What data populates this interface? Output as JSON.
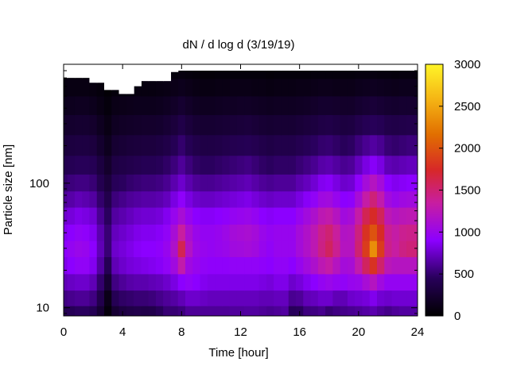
{
  "chart_data": {
    "type": "heatmap",
    "title": "dN / d log d (3/19/19)",
    "xlabel": "Time [hour]",
    "ylabel": "Particle size [nm]",
    "x_range": [
      0,
      24
    ],
    "x_ticks": [
      0,
      4,
      8,
      12,
      16,
      20,
      24
    ],
    "y_scale": "log",
    "y_range": [
      8.6,
      900
    ],
    "y_ticks": [
      10,
      100
    ],
    "colorbar": {
      "range": [
        0,
        3000
      ],
      "ticks": [
        0,
        500,
        1000,
        1500,
        2000,
        2500,
        3000
      ],
      "colormap": "black-purple-red-yellow"
    },
    "grid": false,
    "hours": [
      0,
      0.5,
      1,
      1.5,
      2,
      2.5,
      3,
      3.5,
      4,
      4.5,
      5,
      5.5,
      6,
      6.5,
      7,
      7.5,
      8,
      8.5,
      9,
      9.5,
      10,
      10.5,
      11,
      11.5,
      12,
      12.5,
      13,
      13.5,
      14,
      14.5,
      15,
      15.5,
      16,
      16.5,
      17,
      17.5,
      18,
      18.5,
      19,
      19.5,
      20,
      20.5,
      21,
      21.5,
      22,
      22.5,
      23,
      23.5,
      24
    ],
    "sizes_nm": [
      9,
      12,
      16,
      22,
      30,
      40,
      55,
      75,
      100,
      140,
      200,
      300,
      420,
      600,
      800
    ],
    "upper_size_limit_nm": [
      700,
      700,
      700,
      700,
      640,
      640,
      560,
      560,
      520,
      520,
      600,
      660,
      660,
      660,
      660,
      780,
      800,
      800,
      800,
      800,
      800,
      800,
      800,
      800,
      800,
      800,
      800,
      800,
      800,
      800,
      800,
      800,
      800,
      800,
      800,
      800,
      800,
      800,
      800,
      800,
      800,
      800,
      800,
      800,
      800,
      800,
      800,
      800,
      800
    ],
    "z_rows": [
      [
        400,
        430,
        460,
        460,
        420,
        260,
        60,
        260,
        330,
        360,
        380,
        370,
        380,
        450,
        520,
        520,
        550,
        620,
        620,
        620,
        620,
        620,
        620,
        630,
        630,
        640,
        640,
        620,
        600,
        620,
        640,
        450,
        460,
        550,
        560,
        590,
        520,
        560,
        580,
        600,
        620,
        650,
        680,
        620,
        580,
        620,
        640,
        640,
        640
      ],
      [
        560,
        590,
        610,
        610,
        560,
        380,
        120,
        420,
        480,
        500,
        520,
        520,
        540,
        580,
        620,
        650,
        700,
        760,
        760,
        740,
        720,
        720,
        720,
        720,
        720,
        720,
        720,
        700,
        700,
        720,
        720,
        600,
        620,
        700,
        720,
        760,
        760,
        700,
        700,
        760,
        780,
        800,
        850,
        780,
        760,
        780,
        780,
        780,
        780
      ],
      [
        700,
        740,
        760,
        760,
        700,
        500,
        260,
        560,
        620,
        660,
        680,
        680,
        700,
        720,
        760,
        820,
        900,
        940,
        900,
        860,
        840,
        840,
        840,
        840,
        840,
        840,
        840,
        820,
        800,
        840,
        840,
        760,
        800,
        860,
        900,
        960,
        1000,
        960,
        940,
        980,
        1000,
        1100,
        1200,
        1050,
        960,
        960,
        960,
        960,
        960
      ],
      [
        840,
        900,
        940,
        940,
        860,
        640,
        420,
        700,
        760,
        800,
        820,
        840,
        860,
        880,
        940,
        1050,
        1300,
        1040,
        980,
        940,
        920,
        920,
        920,
        940,
        940,
        940,
        940,
        920,
        900,
        940,
        940,
        900,
        980,
        1060,
        1140,
        1260,
        1320,
        1200,
        1080,
        1100,
        1300,
        1560,
        1800,
        1520,
        1240,
        1200,
        1200,
        1200,
        1200
      ],
      [
        900,
        960,
        1000,
        980,
        900,
        700,
        520,
        760,
        800,
        840,
        880,
        900,
        900,
        920,
        980,
        1150,
        1600,
        1180,
        1020,
        980,
        960,
        980,
        1000,
        1050,
        1060,
        1080,
        1050,
        980,
        940,
        980,
        980,
        980,
        1080,
        1160,
        1260,
        1440,
        1560,
        1400,
        1200,
        1200,
        1500,
        1860,
        2350,
        1860,
        1420,
        1340,
        1440,
        1480,
        1480
      ],
      [
        860,
        900,
        940,
        920,
        860,
        680,
        520,
        720,
        760,
        800,
        840,
        860,
        860,
        880,
        940,
        1100,
        1350,
        1120,
        1000,
        960,
        960,
        980,
        1020,
        1080,
        1100,
        1120,
        1080,
        1000,
        960,
        980,
        980,
        980,
        1080,
        1160,
        1260,
        1420,
        1500,
        1360,
        1180,
        1200,
        1460,
        1800,
        2000,
        1760,
        1400,
        1320,
        1400,
        1420,
        1420
      ],
      [
        760,
        800,
        840,
        820,
        780,
        600,
        460,
        640,
        680,
        720,
        760,
        780,
        780,
        800,
        860,
        980,
        1100,
        980,
        900,
        880,
        880,
        900,
        920,
        960,
        980,
        1000,
        960,
        900,
        880,
        900,
        900,
        900,
        980,
        1060,
        1140,
        1260,
        1300,
        1200,
        1060,
        1100,
        1320,
        1600,
        1750,
        1580,
        1260,
        1200,
        1240,
        1260,
        1260
      ],
      [
        620,
        660,
        700,
        680,
        640,
        500,
        380,
        540,
        580,
        620,
        640,
        660,
        660,
        680,
        720,
        820,
        920,
        820,
        760,
        740,
        740,
        760,
        780,
        800,
        820,
        840,
        800,
        760,
        740,
        760,
        760,
        760,
        820,
        880,
        940,
        1040,
        1060,
        980,
        900,
        920,
        1100,
        1320,
        1480,
        1300,
        1060,
        1000,
        1040,
        1060,
        1060
      ],
      [
        500,
        540,
        560,
        560,
        520,
        400,
        300,
        440,
        460,
        500,
        520,
        540,
        540,
        560,
        600,
        680,
        760,
        680,
        620,
        600,
        600,
        620,
        640,
        660,
        680,
        700,
        660,
        620,
        600,
        620,
        620,
        620,
        680,
        720,
        780,
        860,
        880,
        820,
        760,
        780,
        920,
        1080,
        1200,
        1080,
        900,
        860,
        880,
        900,
        900
      ],
      [
        400,
        420,
        440,
        440,
        420,
        320,
        220,
        340,
        360,
        380,
        400,
        420,
        420,
        440,
        480,
        540,
        620,
        540,
        480,
        460,
        460,
        480,
        500,
        520,
        540,
        560,
        520,
        480,
        460,
        480,
        480,
        480,
        520,
        560,
        600,
        660,
        680,
        640,
        600,
        620,
        720,
        820,
        880,
        820,
        700,
        680,
        700,
        720,
        720
      ],
      [
        300,
        320,
        330,
        330,
        310,
        230,
        150,
        250,
        270,
        290,
        300,
        310,
        310,
        330,
        360,
        420,
        500,
        420,
        370,
        350,
        350,
        360,
        380,
        400,
        410,
        420,
        400,
        370,
        350,
        370,
        370,
        370,
        400,
        430,
        460,
        500,
        510,
        480,
        450,
        470,
        540,
        600,
        640,
        600,
        520,
        500,
        520,
        540,
        540
      ],
      [
        220,
        230,
        240,
        240,
        220,
        160,
        100,
        170,
        190,
        200,
        210,
        220,
        220,
        230,
        260,
        300,
        360,
        300,
        260,
        250,
        250,
        260,
        270,
        280,
        290,
        300,
        280,
        260,
        250,
        260,
        260,
        260,
        280,
        300,
        320,
        350,
        360,
        340,
        320,
        330,
        380,
        420,
        440,
        420,
        370,
        360,
        370,
        380,
        380
      ],
      [
        140,
        150,
        160,
        160,
        140,
        100,
        60,
        110,
        120,
        130,
        140,
        140,
        140,
        150,
        170,
        200,
        240,
        200,
        170,
        160,
        160,
        170,
        180,
        180,
        190,
        190,
        180,
        170,
        160,
        170,
        170,
        170,
        180,
        190,
        210,
        230,
        230,
        220,
        210,
        210,
        240,
        260,
        280,
        260,
        240,
        230,
        240,
        240,
        240
      ],
      [
        80,
        90,
        90,
        90,
        80,
        60,
        30,
        60,
        70,
        70,
        80,
        80,
        80,
        90,
        100,
        120,
        140,
        120,
        100,
        90,
        90,
        100,
        100,
        110,
        110,
        110,
        100,
        100,
        90,
        100,
        100,
        100,
        110,
        110,
        120,
        130,
        130,
        120,
        120,
        120,
        140,
        150,
        160,
        150,
        140,
        130,
        140,
        140,
        140
      ],
      [
        40,
        40,
        40,
        40,
        40,
        30,
        20,
        30,
        30,
        30,
        40,
        40,
        40,
        40,
        50,
        60,
        70,
        60,
        50,
        40,
        40,
        50,
        50,
        50,
        50,
        50,
        50,
        50,
        40,
        50,
        50,
        50,
        50,
        50,
        60,
        60,
        60,
        60,
        60,
        60,
        70,
        70,
        80,
        70,
        70,
        60,
        70,
        70,
        70
      ]
    ]
  }
}
